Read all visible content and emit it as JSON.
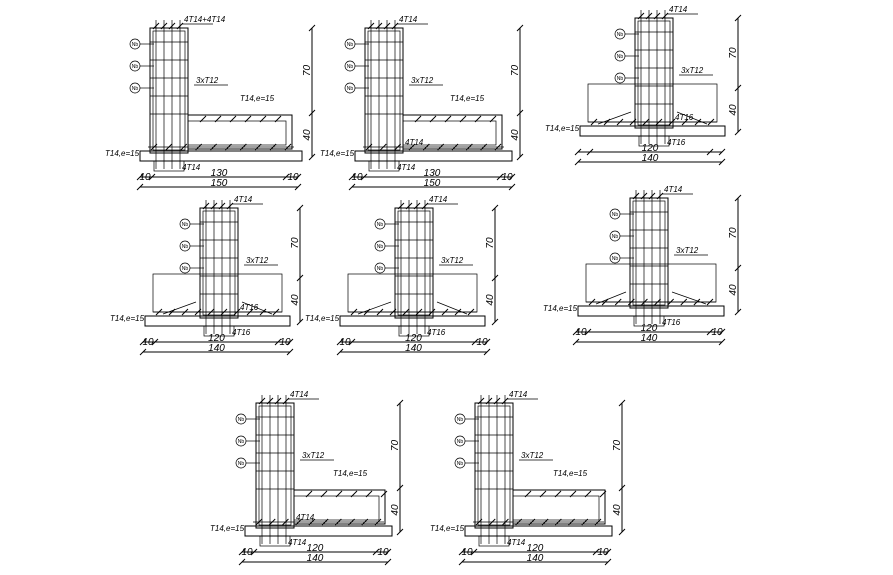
{
  "details": [
    {
      "shape": "L",
      "labels": {
        "top": "4T14+4T14",
        "stirrups": "3xT12",
        "slab": "T14,e=15",
        "mid": "",
        "base_left": "T14,e=15",
        "base_bottom": "4T14"
      },
      "dims": {
        "left": "10",
        "mid": "130",
        "right": "10",
        "total": "150",
        "vertical_upper": "70",
        "vertical_lower": "40"
      },
      "markers": [
        "Nb",
        "Nb",
        "Nb"
      ]
    },
    {
      "shape": "L",
      "labels": {
        "top": "4T14",
        "stirrups": "3xT12",
        "slab": "T14,e=15",
        "mid": "4T14",
        "base_left": "T14,e=15",
        "base_bottom": "4T14"
      },
      "dims": {
        "left": "10",
        "mid": "130",
        "right": "10",
        "total": "150",
        "vertical_upper": "70",
        "vertical_lower": "40"
      },
      "markers": [
        "Nb",
        "Nb",
        "Nb"
      ]
    },
    {
      "shape": "T",
      "labels": {
        "top": "4T14",
        "stirrups": "3xT12",
        "slab": "",
        "mid": "4T16",
        "base_left": "T14,e=15",
        "base_bottom": "4T16"
      },
      "dims": {
        "left": "",
        "mid": "120",
        "right": "",
        "total": "140",
        "vertical_upper": "70",
        "vertical_lower": "40"
      },
      "markers": [
        "Nb",
        "Nb",
        "Nb"
      ]
    },
    {
      "shape": "T",
      "labels": {
        "top": "4T14",
        "stirrups": "3xT12",
        "slab": "",
        "mid": "4T16",
        "base_left": "T14,e=15",
        "base_bottom": "4T16"
      },
      "dims": {
        "left": "10",
        "mid": "120",
        "right": "10",
        "total": "140",
        "vertical_upper": "70",
        "vertical_lower": "40"
      },
      "markers": [
        "Nb",
        "Nb",
        "Nb"
      ]
    },
    {
      "shape": "T",
      "labels": {
        "top": "4T14",
        "stirrups": "3xT12",
        "slab": "",
        "mid": "",
        "base_left": "T14,e=15",
        "base_bottom": "4T16"
      },
      "dims": {
        "left": "10",
        "mid": "120",
        "right": "10",
        "total": "140",
        "vertical_upper": "70",
        "vertical_lower": "40"
      },
      "markers": [
        "Nb",
        "Nb",
        "Nb"
      ]
    },
    {
      "shape": "T",
      "labels": {
        "top": "4T14",
        "stirrups": "3xT12",
        "slab": "",
        "mid": "",
        "base_left": "T14,e=15",
        "base_bottom": "4T16"
      },
      "dims": {
        "left": "10",
        "mid": "120",
        "right": "10",
        "total": "140",
        "vertical_upper": "70",
        "vertical_lower": "40"
      },
      "markers": [
        "Nb",
        "Nb",
        "Nb"
      ]
    },
    {
      "shape": "L",
      "labels": {
        "top": "4T14",
        "stirrups": "3xT12",
        "slab": "T14,e=15",
        "mid": "4T14",
        "base_left": "T14,e=15",
        "base_bottom": "4T14"
      },
      "dims": {
        "left": "10",
        "mid": "120",
        "right": "10",
        "total": "140",
        "vertical_upper": "70",
        "vertical_lower": "40"
      },
      "markers": [
        "Nb",
        "Nb",
        "Nb"
      ]
    },
    {
      "shape": "L",
      "labels": {
        "top": "4T14",
        "stirrups": "3xT12",
        "slab": "T14,e=15",
        "mid": "",
        "base_left": "T14,e=15",
        "base_bottom": "4T14"
      },
      "dims": {
        "left": "10",
        "mid": "120",
        "right": "10",
        "total": "140",
        "vertical_upper": "70",
        "vertical_lower": "40"
      },
      "markers": [
        "Nb",
        "Nb",
        "Nb"
      ]
    }
  ]
}
